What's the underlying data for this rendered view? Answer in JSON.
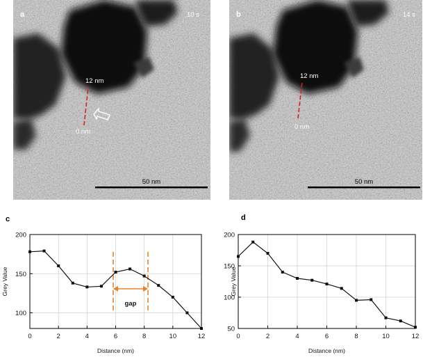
{
  "micrographs": [
    {
      "panel": "a",
      "time": "10 s",
      "scale_bar": "50 nm",
      "line_start": "0 nm",
      "line_end": "12 nm"
    },
    {
      "panel": "b",
      "time": "14 s",
      "scale_bar": "50 nm",
      "line_start": "0 nm",
      "line_end": "12 nm"
    }
  ],
  "colors": {
    "profile_line": "#d62020",
    "arrow": "#ffffff",
    "series": "#111111",
    "gap_marker": "#e8822b",
    "grid": "#cfcfcf"
  },
  "chart_data": [
    {
      "panel": "c",
      "type": "line",
      "xlabel": "Distance (nm)",
      "ylabel": "Grey Value",
      "xlim": [
        0,
        12
      ],
      "ylim": [
        80,
        200
      ],
      "xticks": [
        0,
        2,
        4,
        6,
        8,
        10,
        12
      ],
      "yticks": [
        100,
        150,
        200
      ],
      "grid": true,
      "x": [
        0,
        1,
        2,
        3,
        4,
        5,
        6,
        7,
        8,
        9,
        10,
        11,
        12
      ],
      "series": [
        {
          "values": [
            178,
            179,
            160,
            138,
            133,
            134,
            152,
            156,
            147,
            135,
            120,
            100,
            80
          ]
        }
      ],
      "annotation": {
        "label": "gap",
        "x_range": [
          5.8,
          8.3
        ]
      }
    },
    {
      "panel": "d",
      "type": "line",
      "xlabel": "Distance (nm)",
      "ylabel": "Grey Value",
      "xlim": [
        0,
        12
      ],
      "ylim": [
        50,
        200
      ],
      "xticks": [
        0,
        2,
        4,
        6,
        8,
        10,
        12
      ],
      "yticks": [
        50,
        100,
        150,
        200
      ],
      "grid": true,
      "x": [
        0,
        1,
        2,
        3,
        4,
        5,
        6,
        7,
        8,
        9,
        10,
        11,
        12
      ],
      "series": [
        {
          "values": [
            165,
            188,
            170,
            140,
            130,
            127,
            121,
            114,
            95,
            96,
            67,
            62,
            52
          ]
        }
      ]
    }
  ]
}
